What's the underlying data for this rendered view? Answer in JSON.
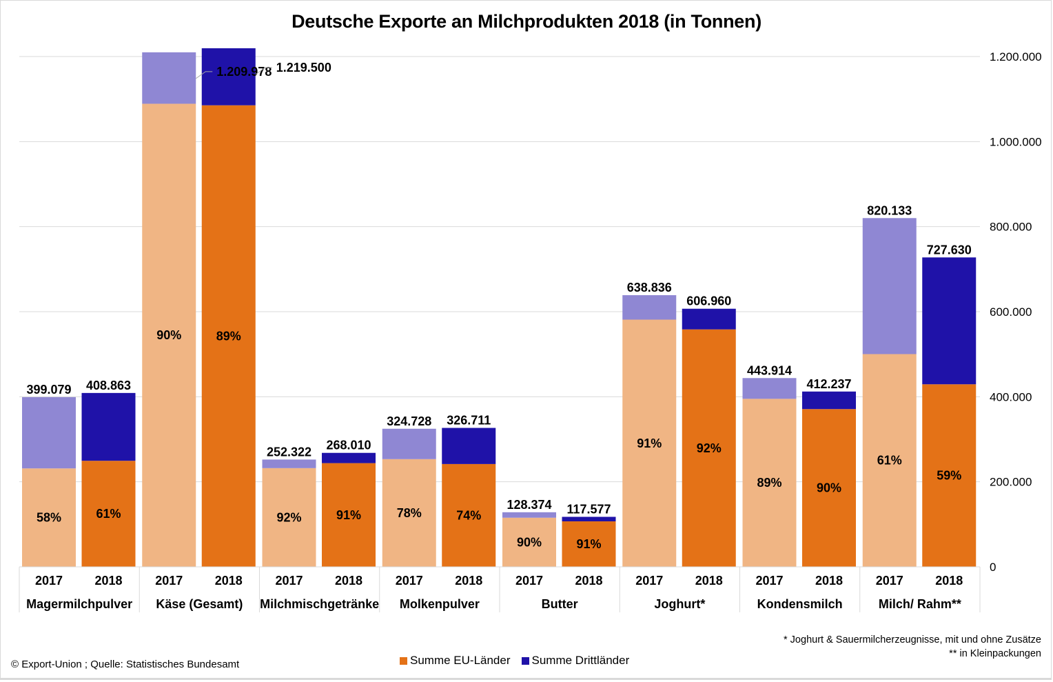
{
  "colors": {
    "eu_2017": "#f0b584",
    "eu_2018": "#e47217",
    "third_2017": "#8f87d3",
    "third_2018": "#1f12a8",
    "grid": "#d9d9d9"
  },
  "legend": {
    "eu_label": "Summe EU-Länder",
    "third_label": "Summe Drittländer"
  },
  "footer": {
    "source": "© Export-Union  ; Quelle:  Statistisches  Bundesamt",
    "footnote1": "* Joghurt & Sauermilcherzeugnisse, mit und ohne Zusätze",
    "footnote2": "** in Kleinpackungen"
  },
  "chart_data": {
    "type": "bar",
    "stacked": true,
    "title": "Deutsche Exporte an Milchprodukten 2018 (in Tonnen)",
    "xlabel": "",
    "ylabel": "",
    "ylim": [
      0,
      1200000
    ],
    "y_axis_position": "right",
    "y_ticks": [
      0,
      200000,
      400000,
      600000,
      800000,
      1000000,
      1200000
    ],
    "y_tick_labels": [
      "0",
      "200.000",
      "400.000",
      "600.000",
      "800.000",
      "1.000.000",
      "1.200.000"
    ],
    "grid": true,
    "legend_position": "bottom",
    "series_names": [
      "Summe EU-Länder",
      "Summe Drittländer"
    ],
    "groups": [
      {
        "category": "Magermilchpulver",
        "bars": [
          {
            "year": "2017",
            "total": 399079,
            "total_label": "399.079",
            "eu": 231466,
            "eu_pct_label": "58%"
          },
          {
            "year": "2018",
            "total": 408863,
            "total_label": "408.863",
            "eu": 249406,
            "eu_pct_label": "61%"
          }
        ]
      },
      {
        "category": "Käse (Gesamt)",
        "bars": [
          {
            "year": "2017",
            "total": 1209978,
            "total_label": "1.209.978",
            "eu": 1088980,
            "eu_pct_label": "90%"
          },
          {
            "year": "2018",
            "total": 1219500,
            "total_label": "1.219.500",
            "eu": 1085355,
            "eu_pct_label": "89%"
          }
        ]
      },
      {
        "category": "Milchmischgetränke",
        "bars": [
          {
            "year": "2017",
            "total": 252322,
            "total_label": "252.322",
            "eu": 232136,
            "eu_pct_label": "92%"
          },
          {
            "year": "2018",
            "total": 268010,
            "total_label": "268.010",
            "eu": 243889,
            "eu_pct_label": "91%"
          }
        ]
      },
      {
        "category": "Molkenpulver",
        "bars": [
          {
            "year": "2017",
            "total": 324728,
            "total_label": "324.728",
            "eu": 253288,
            "eu_pct_label": "78%"
          },
          {
            "year": "2018",
            "total": 326711,
            "total_label": "326.711",
            "eu": 241766,
            "eu_pct_label": "74%"
          }
        ]
      },
      {
        "category": "Butter",
        "bars": [
          {
            "year": "2017",
            "total": 128374,
            "total_label": "128.374",
            "eu": 115537,
            "eu_pct_label": "90%"
          },
          {
            "year": "2018",
            "total": 117577,
            "total_label": "117.577",
            "eu": 106995,
            "eu_pct_label": "91%"
          }
        ]
      },
      {
        "category": "Joghurt*",
        "bars": [
          {
            "year": "2017",
            "total": 638836,
            "total_label": "638.836",
            "eu": 581341,
            "eu_pct_label": "91%"
          },
          {
            "year": "2018",
            "total": 606960,
            "total_label": "606.960",
            "eu": 558403,
            "eu_pct_label": "92%"
          }
        ]
      },
      {
        "category": "Kondensmilch",
        "bars": [
          {
            "year": "2017",
            "total": 443914,
            "total_label": "443.914",
            "eu": 395083,
            "eu_pct_label": "89%"
          },
          {
            "year": "2018",
            "total": 412237,
            "total_label": "412.237",
            "eu": 371013,
            "eu_pct_label": "90%"
          }
        ]
      },
      {
        "category": "Milch/ Rahm**",
        "bars": [
          {
            "year": "2017",
            "total": 820133,
            "total_label": "820.133",
            "eu": 500281,
            "eu_pct_label": "61%"
          },
          {
            "year": "2018",
            "total": 727630,
            "total_label": "727.630",
            "eu": 429302,
            "eu_pct_label": "59%"
          }
        ]
      }
    ]
  }
}
